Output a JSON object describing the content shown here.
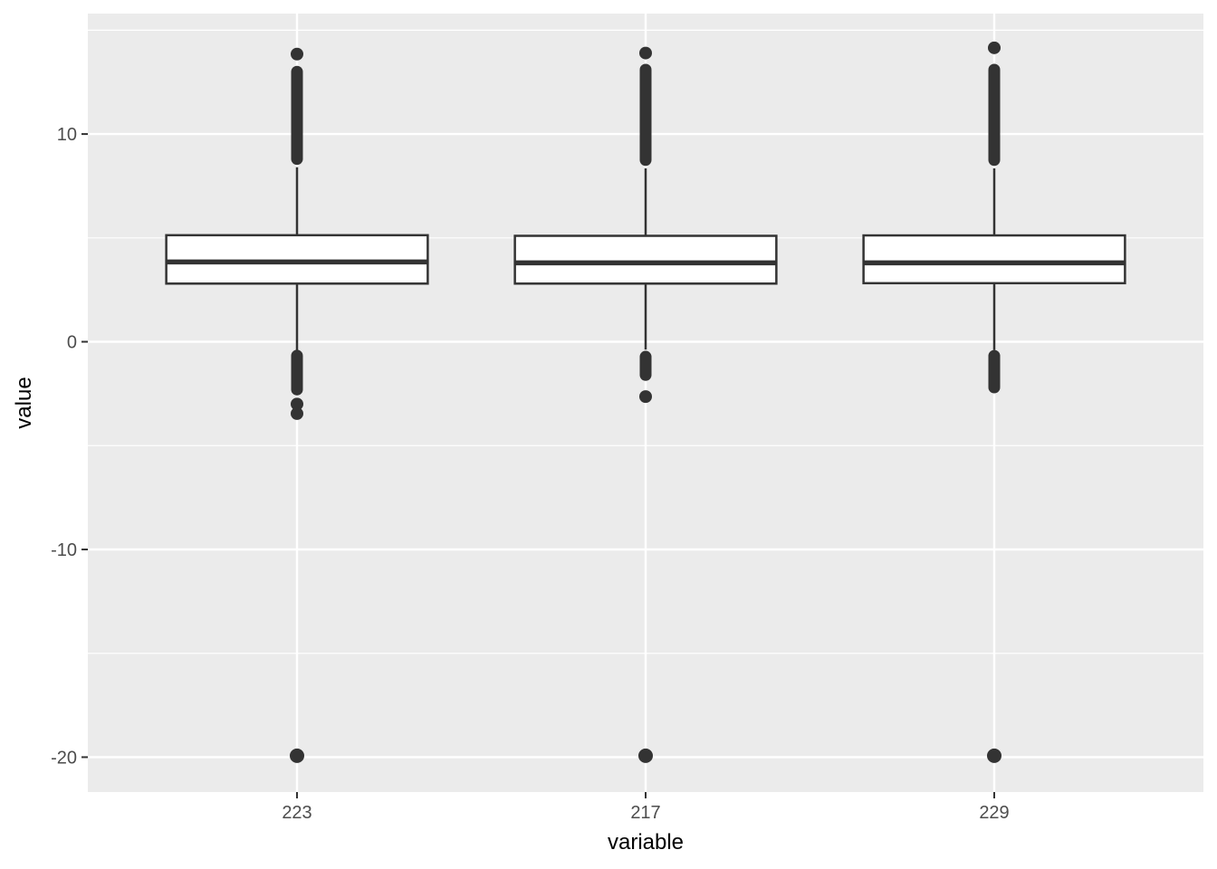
{
  "figure": {
    "xlabel": "variable",
    "ylabel": "value"
  },
  "chart_data": {
    "type": "boxplot",
    "title": "",
    "xlabel": "variable",
    "ylabel": "value",
    "categories": [
      "223",
      "217",
      "229"
    ],
    "y_ticks": [
      10,
      0,
      -10,
      -20
    ],
    "y_tick_labels": [
      "10",
      "0",
      "-10",
      "-20"
    ],
    "y_minor_ticks": [
      15,
      5,
      -5,
      -15
    ],
    "ylim": [
      -21.68,
      15.8
    ],
    "grid": "major+minor horizontal white, vertical major at each category",
    "legend": "none",
    "boxes": [
      {
        "category": "223",
        "q1": 2.8,
        "median": 3.84,
        "q3": 5.13,
        "whisker_low": -0.42,
        "whisker_high": 8.4,
        "outlier_runs": [
          [
            8.8,
            13.0
          ],
          [
            -0.67,
            -2.3
          ]
        ],
        "outlier_dots": [
          13.85,
          -3.0,
          -3.46,
          -19.93
        ]
      },
      {
        "category": "217",
        "q1": 2.8,
        "median": 3.8,
        "q3": 5.1,
        "whisker_low": -0.38,
        "whisker_high": 8.35,
        "outlier_runs": [
          [
            8.75,
            13.1
          ],
          [
            -0.72,
            -1.6
          ]
        ],
        "outlier_dots": [
          13.9,
          -2.64,
          -19.93
        ]
      },
      {
        "category": "229",
        "q1": 2.82,
        "median": 3.8,
        "q3": 5.12,
        "whisker_low": -0.4,
        "whisker_high": 8.35,
        "outlier_runs": [
          [
            8.75,
            13.1
          ],
          [
            -0.68,
            -2.2
          ]
        ],
        "outlier_dots": [
          14.15,
          -19.93
        ]
      }
    ],
    "colors": {
      "panel_bg": "#EBEBEB",
      "grid": "#FFFFFF",
      "box_stroke": "#333333",
      "box_fill": "#FFFFFF",
      "outlier": "#333333",
      "tick_mark": "#333333",
      "axis_text": "#4D4D4D",
      "axis_title": "#000000",
      "page_bg": "#FFFFFF"
    }
  }
}
